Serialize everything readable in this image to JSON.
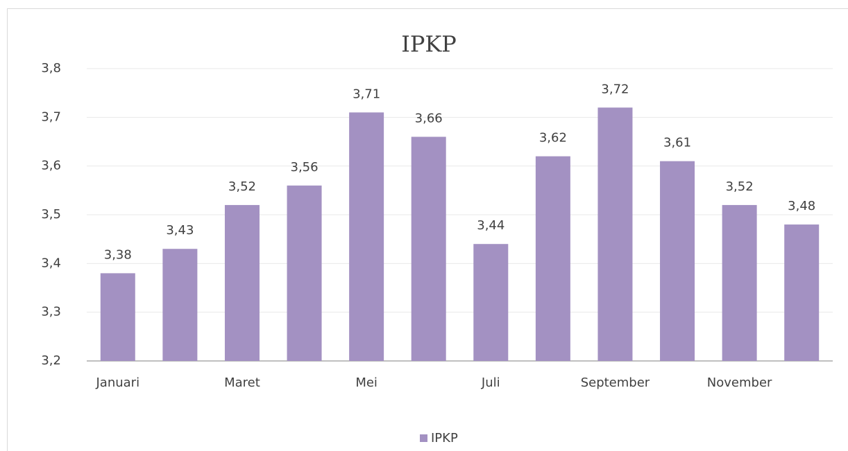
{
  "chart_data": {
    "type": "bar",
    "title": "IPKP",
    "categories": [
      "Januari",
      null,
      "Maret",
      null,
      "Mei",
      null,
      "Juli",
      null,
      "September",
      null,
      "November",
      null
    ],
    "series": [
      {
        "name": "IPKP",
        "color": "#a391c2",
        "values": [
          3.38,
          3.43,
          3.52,
          3.56,
          3.71,
          3.66,
          3.44,
          3.62,
          3.72,
          3.61,
          3.52,
          3.48
        ],
        "value_labels": [
          "3,38",
          "3,43",
          "3,52",
          "3,56",
          "3,71",
          "3,66",
          "3,44",
          "3,62",
          "3,72",
          "3,61",
          "3,52",
          "3,48"
        ]
      }
    ],
    "ylim": [
      3.2,
      3.8
    ],
    "yticks": [
      {
        "value": 3.2,
        "label": "3,2"
      },
      {
        "value": 3.3,
        "label": "3,3"
      },
      {
        "value": 3.4,
        "label": "3,4"
      },
      {
        "value": 3.5,
        "label": "3,5"
      },
      {
        "value": 3.6,
        "label": "3,6"
      },
      {
        "value": 3.7,
        "label": "3,7"
      },
      {
        "value": 3.8,
        "label": "3,8"
      }
    ],
    "grid": true,
    "legend": "bottom"
  }
}
